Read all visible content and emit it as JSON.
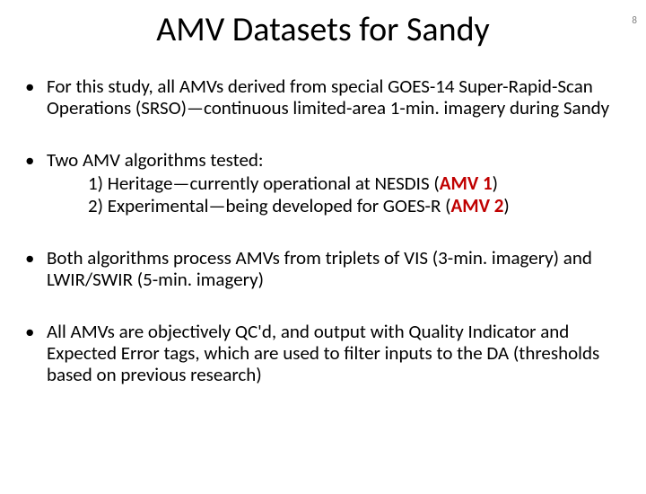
{
  "page_number": "8",
  "title": "AMV Datasets for Sandy",
  "colors": {
    "background": "#ffffff",
    "text": "#000000",
    "accent": "#c00000",
    "pagenum": "#808080"
  },
  "typography": {
    "title_fontsize": 38,
    "body_fontsize": 21,
    "font_family": "Calibri"
  },
  "bullets": {
    "b1": "For this study, all AMVs derived from special GOES-14 Super-Rapid-Scan Operations (SRSO)—continuous limited-area 1-min. imagery during Sandy",
    "b2": {
      "lead": "Two AMV algorithms tested:",
      "item1_prefix": "1)  Heritage—currently operational at NESDIS (",
      "item1_accent": "AMV 1",
      "item1_suffix": ")",
      "item2_prefix": "2)  Experimental—being developed for GOES-R (",
      "item2_accent": "AMV 2",
      "item2_suffix": ")"
    },
    "b3": "Both algorithms process AMVs from triplets of VIS (3-min. imagery) and LWIR/SWIR (5-min. imagery)",
    "b4": "All AMVs are objectively QC'd, and output with Quality Indicator and Expected Error tags, which are used to filter inputs to the DA (thresholds based on previous research)"
  }
}
